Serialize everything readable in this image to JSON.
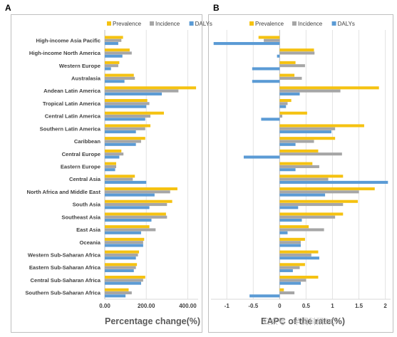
{
  "panels": {
    "a_letter": "A",
    "b_letter": "B"
  },
  "legend": [
    {
      "name": "Prevalence",
      "color": "#f5c211"
    },
    {
      "name": "Incidence",
      "color": "#a6a6a6"
    },
    {
      "name": "DALYs",
      "color": "#5b9bd5"
    }
  ],
  "watermark": "公众号 · 半调科研SCI",
  "chart_data": [
    {
      "type": "bar",
      "orientation": "horizontal",
      "xlabel": "Percentage change(%)",
      "xlim": [
        0,
        450
      ],
      "xticks": [
        0,
        200,
        400
      ],
      "xtick_labels": [
        "0.00",
        "200.00",
        "400.00"
      ],
      "legend_position": "top",
      "categories": [
        "High-income Asia Pacific",
        "High-income North America",
        "Western Europe",
        "Australasia",
        "Andean Latin America",
        "Tropical Latin America",
        "Central Latin America",
        "Southern Latin America",
        "Caribbean",
        "Central Europe",
        "Eastern Europe",
        "Central Asia",
        "North Africa and Middle East",
        "South Asia",
        "Southeast Asia",
        "East Asia",
        "Oceania",
        "Western Sub-Saharan Africa",
        "Eastern Sub-Saharan Africa",
        "Central Sub-Saharan Africa",
        "Southern Sub-Saharan Africa"
      ],
      "series": [
        {
          "name": "Prevalence",
          "values": [
            88,
            120,
            70,
            140,
            440,
            205,
            285,
            220,
            195,
            80,
            55,
            145,
            350,
            325,
            295,
            215,
            190,
            165,
            155,
            195,
            115
          ]
        },
        {
          "name": "Incidence",
          "values": [
            80,
            130,
            65,
            145,
            355,
            215,
            220,
            195,
            175,
            90,
            55,
            135,
            315,
            300,
            300,
            245,
            185,
            160,
            150,
            185,
            130
          ]
        },
        {
          "name": "DALYs",
          "values": [
            65,
            85,
            30,
            95,
            275,
            200,
            195,
            150,
            150,
            70,
            50,
            200,
            240,
            215,
            225,
            175,
            185,
            150,
            140,
            175,
            100
          ]
        }
      ]
    },
    {
      "type": "bar",
      "orientation": "horizontal",
      "xlabel": "EAPC of the rate(%)",
      "xlim": [
        -1.3,
        2.1
      ],
      "xticks": [
        -1,
        -0.5,
        0,
        0.5,
        1,
        1.5,
        2
      ],
      "xtick_labels": [
        "-1",
        "-0.5",
        "0",
        "0.5",
        "1",
        "1.5",
        "2"
      ],
      "legend_position": "top",
      "categories": [
        "High-income Asia Pacific",
        "High-income North America",
        "Western Europe",
        "Australasia",
        "Andean Latin America",
        "Tropical Latin America",
        "Central Latin America",
        "Southern Latin America",
        "Caribbean",
        "Central Europe",
        "Eastern Europe",
        "Central Asia",
        "North Africa and Middle East",
        "South Asia",
        "Southeast Asia",
        "East Asia",
        "Oceania",
        "Western Sub-Saharan Africa",
        "Eastern Sub-Saharan Africa",
        "Central Sub-Saharan Africa",
        "Southern Sub-Saharan Africa"
      ],
      "series": [
        {
          "name": "Prevalence",
          "values": [
            -0.4,
            0.65,
            0.3,
            0.28,
            1.88,
            0.22,
            0.52,
            1.6,
            1.05,
            0.73,
            0.62,
            1.2,
            1.8,
            1.48,
            1.2,
            0.55,
            0.48,
            0.73,
            0.48,
            0.73,
            0.08
          ]
        },
        {
          "name": "Incidence",
          "values": [
            -0.3,
            0.66,
            0.48,
            0.42,
            1.15,
            0.15,
            0.05,
            1.05,
            0.65,
            1.18,
            0.75,
            0.92,
            1.5,
            1.2,
            1.05,
            0.84,
            0.4,
            0.6,
            0.38,
            0.5,
            0.28
          ]
        },
        {
          "name": "DALYs",
          "values": [
            -1.25,
            -0.05,
            -0.52,
            -0.52,
            0.38,
            0.12,
            -0.35,
            0.98,
            0.3,
            -0.68,
            0.3,
            2.05,
            0.86,
            0.35,
            0.42,
            0.15,
            0.4,
            0.75,
            0.25,
            0.4,
            -0.57
          ]
        }
      ]
    }
  ]
}
